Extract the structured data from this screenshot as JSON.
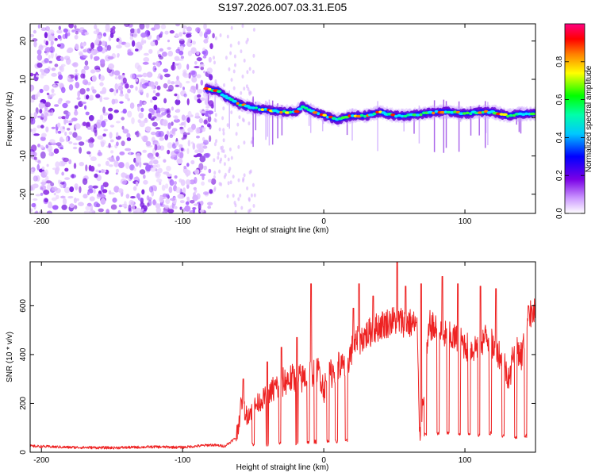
{
  "title": "S197.2026.007.03.31.E05",
  "chart_data": [
    {
      "type": "heatmap",
      "name": "spectrogram",
      "xlabel": "Height of straight line (km)",
      "ylabel": "Frequency (Hz)",
      "xlim": [
        -208,
        150
      ],
      "ylim": [
        -25,
        24.5
      ],
      "xticks": [
        -200,
        -100,
        0,
        100
      ],
      "xtick_labels": [
        "-200",
        "-100",
        "0",
        "100"
      ],
      "yticks": [
        -20,
        -10,
        0,
        10,
        20
      ],
      "ytick_labels": [
        "-20",
        "-10",
        "0",
        "10",
        "20"
      ],
      "noise_region_x": [
        -208,
        -78
      ],
      "signal_trace": {
        "x": [
          -83,
          -75,
          -68,
          -60,
          -50,
          -40,
          -30,
          -20,
          -15,
          -10,
          0,
          10,
          20,
          30,
          40,
          50,
          60,
          70,
          80,
          90,
          100,
          110,
          120,
          130,
          140,
          150
        ],
        "freq": [
          7.5,
          7.0,
          5.0,
          3.5,
          2.5,
          2.0,
          1.5,
          1.5,
          3.0,
          2.0,
          0.5,
          -0.5,
          0.5,
          0.5,
          1.5,
          0.5,
          0.5,
          1.0,
          1.5,
          1.5,
          1.0,
          1.5,
          1.5,
          0.5,
          1.0,
          1.0
        ]
      },
      "colorbar": {
        "label": "Normalized spectral amplitude",
        "range": [
          0,
          1
        ],
        "ticks": [
          0.0,
          0.2,
          0.4,
          0.6,
          0.8
        ],
        "tick_labels": [
          "0.0",
          "0.2",
          "0.4",
          "0.6",
          "0.8"
        ],
        "colors": [
          "#ffffff",
          "#cc99ff",
          "#6600cc",
          "#0000ff",
          "#00ffff",
          "#00ff00",
          "#ffff00",
          "#ff8000",
          "#ff0000",
          "#ff0080"
        ]
      }
    },
    {
      "type": "line",
      "name": "snr",
      "xlabel": "Height of straight line (km)",
      "ylabel": "SNR (10 * v/v)",
      "xlim": [
        -208,
        150
      ],
      "ylim": [
        0,
        780
      ],
      "xticks": [
        -200,
        -100,
        0,
        100
      ],
      "xtick_labels": [
        "-200",
        "-100",
        "0",
        "100"
      ],
      "yticks": [
        0,
        200,
        400,
        600
      ],
      "ytick_labels": [
        "0",
        "200",
        "400",
        "600"
      ],
      "color": "#ee2222",
      "x": [
        -208,
        -180,
        -150,
        -120,
        -100,
        -80,
        -70,
        -62,
        -58,
        -55,
        -45,
        -35,
        -25,
        -15,
        -8,
        -3,
        0,
        5,
        10,
        15,
        20,
        25,
        30,
        40,
        50,
        60,
        66,
        68,
        75,
        85,
        95,
        105,
        115,
        125,
        132,
        135,
        140,
        145,
        150
      ],
      "snr": [
        25,
        20,
        18,
        22,
        20,
        30,
        25,
        60,
        210,
        150,
        210,
        260,
        300,
        300,
        330,
        330,
        260,
        320,
        360,
        340,
        420,
        460,
        480,
        520,
        540,
        530,
        520,
        60,
        520,
        480,
        460,
        420,
        470,
        400,
        300,
        460,
        390,
        560,
        570
      ],
      "dropouts": [
        {
          "x": -50,
          "to": 25
        },
        {
          "x": -40,
          "to": 25
        },
        {
          "x": -31,
          "to": 30
        },
        {
          "x": -19,
          "to": 30
        },
        {
          "x": -11,
          "to": 35
        },
        {
          "x": -6,
          "to": 35
        },
        {
          "x": 3,
          "to": 40
        },
        {
          "x": 9,
          "to": 35
        },
        {
          "x": 16,
          "to": 40
        },
        {
          "x": 72,
          "to": 65
        },
        {
          "x": 81,
          "to": 70
        },
        {
          "x": 88,
          "to": 70
        },
        {
          "x": 96,
          "to": 65
        },
        {
          "x": 103,
          "to": 70
        },
        {
          "x": 110,
          "to": 60
        },
        {
          "x": 118,
          "to": 70
        },
        {
          "x": 127,
          "to": 60
        },
        {
          "x": 136,
          "to": 50
        },
        {
          "x": 143,
          "to": 60
        }
      ],
      "spikes": [
        {
          "x": -57,
          "y": 300
        },
        {
          "x": -40,
          "y": 370
        },
        {
          "x": -30,
          "y": 430
        },
        {
          "x": -19,
          "y": 470
        },
        {
          "x": -9,
          "y": 690
        },
        {
          "x": 21,
          "y": 590
        },
        {
          "x": 25,
          "y": 690
        },
        {
          "x": 35,
          "y": 640
        },
        {
          "x": 52,
          "y": 780
        },
        {
          "x": 58,
          "y": 680
        },
        {
          "x": 69,
          "y": 690
        },
        {
          "x": 84,
          "y": 720
        },
        {
          "x": 95,
          "y": 690
        },
        {
          "x": 111,
          "y": 680
        },
        {
          "x": 122,
          "y": 670
        },
        {
          "x": 145,
          "y": 600
        }
      ]
    }
  ]
}
